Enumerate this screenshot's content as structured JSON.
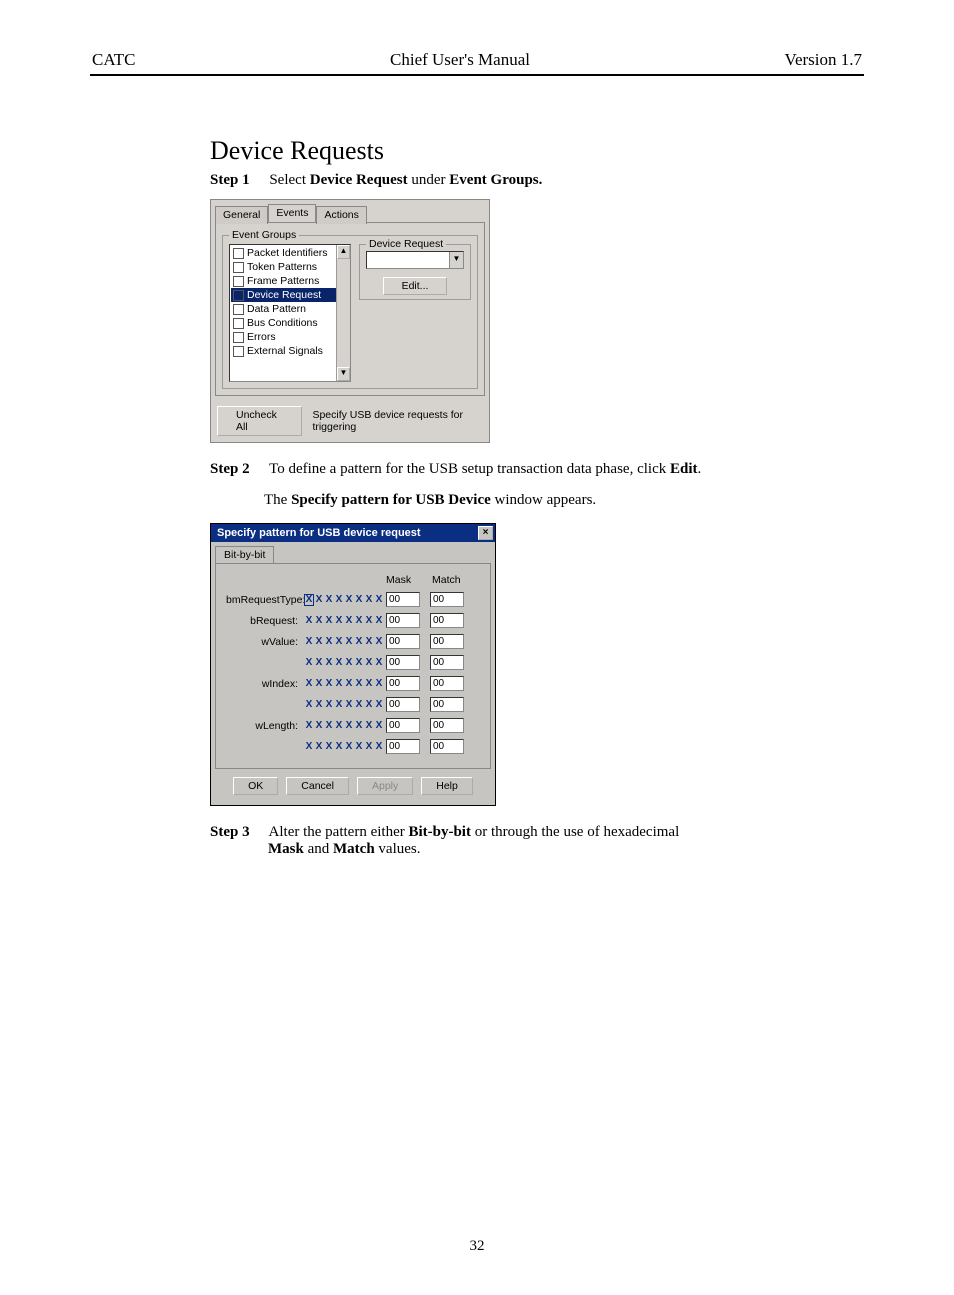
{
  "header": {
    "left": "CATC",
    "center": "Chief User's Manual",
    "right": "Version 1.7"
  },
  "section_title": "Device Requests",
  "steps": {
    "s1": {
      "label": "Step 1",
      "pre": "Select ",
      "b1": "Device Request",
      "mid": " under ",
      "b2": "Event Groups."
    },
    "s2": {
      "label": "Step 2",
      "pre": "To define a pattern for the USB setup transaction data phase, click ",
      "b1": "Edit",
      "post": "."
    },
    "s2b": {
      "pre": "The ",
      "b1": "Specify pattern for USB Device",
      "post": " window appears."
    },
    "s3": {
      "label": "Step 3",
      "pre": "Alter the pattern either ",
      "b1": "Bit-by-bit",
      "mid": " or through the use of hexadecimal ",
      "b2": "Mask",
      "mid2": " and ",
      "b3": "Match",
      "post": " values."
    }
  },
  "shot1": {
    "tabs": {
      "general": "General",
      "events": "Events",
      "actions": "Actions"
    },
    "group_label": "Event Groups",
    "items": [
      {
        "label": "Packet Identifiers",
        "sel": false
      },
      {
        "label": "Token Patterns",
        "sel": false
      },
      {
        "label": "Frame Patterns",
        "sel": false
      },
      {
        "label": "Device Request",
        "sel": true
      },
      {
        "label": "Data Pattern",
        "sel": false
      },
      {
        "label": "Bus Conditions",
        "sel": false
      },
      {
        "label": "Errors",
        "sel": false
      },
      {
        "label": "External Signals",
        "sel": false
      }
    ],
    "dr_label": "Device Request",
    "edit_btn": "Edit...",
    "uncheck_btn": "Uncheck All",
    "hint": "Specify USB device requests for triggering"
  },
  "shot2": {
    "title": "Specify pattern for USB device request",
    "tab": "Bit-by-bit",
    "mask_hdr": "Mask",
    "match_hdr": "Match",
    "labels": [
      "bmRequestType:",
      "bRequest:",
      "wValue:",
      "",
      "wIndex:",
      "",
      "wLength:",
      ""
    ],
    "bit_default": "X",
    "mask_val": "00",
    "match_val": "00",
    "buttons": {
      "ok": "OK",
      "cancel": "Cancel",
      "apply": "Apply",
      "help": "Help"
    }
  },
  "page_number": "32",
  "colors": {
    "win_gray": "#d6d3ce",
    "win_gray2": "#c7c5c1",
    "highlight_bg": "#0a246a",
    "titlebar_bg": "#0a2e82"
  }
}
